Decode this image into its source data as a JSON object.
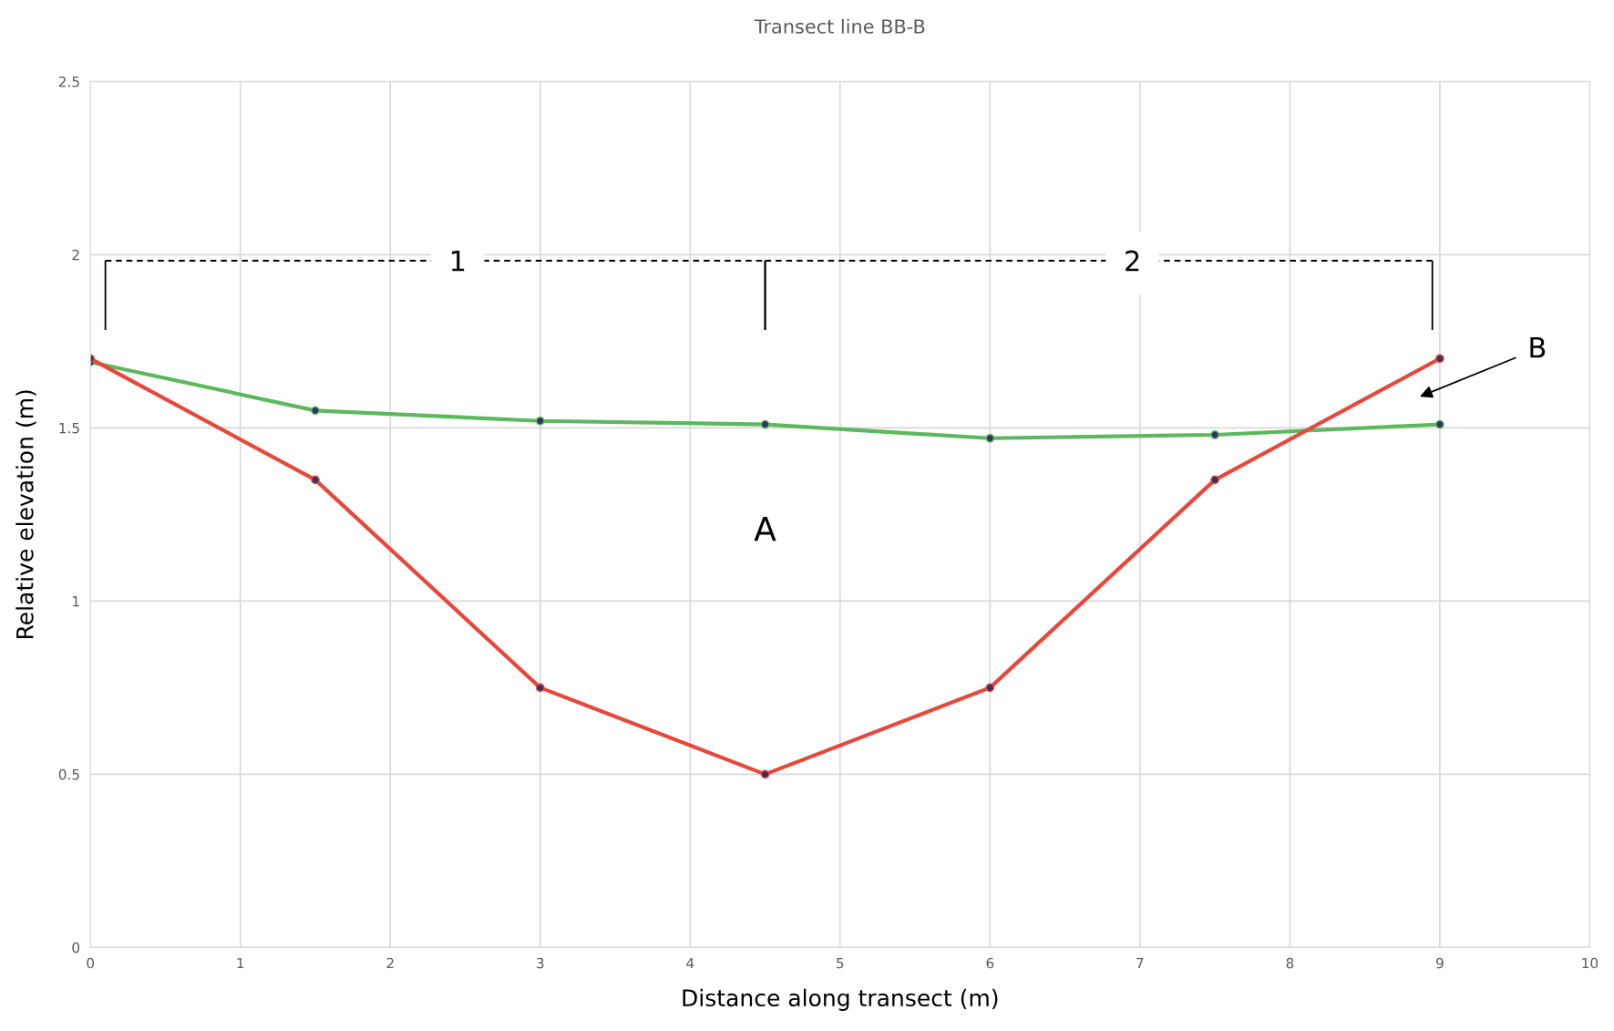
{
  "chart_data": {
    "type": "line",
    "title": "Transect line BB-B",
    "xlabel": "Distance along transect (m)",
    "ylabel": "Relative elevation (m)",
    "x": [
      0,
      1.5,
      3,
      4.5,
      6,
      7.5,
      9
    ],
    "series": [
      {
        "color": "#5cb85c",
        "values": [
          1.69,
          1.55,
          1.52,
          1.51,
          1.47,
          1.48,
          1.51
        ]
      },
      {
        "color": "#e8473b",
        "values": [
          1.7,
          1.35,
          0.75,
          0.5,
          0.75,
          1.35,
          1.7
        ]
      }
    ],
    "xlim": [
      0,
      10
    ],
    "xticks": [
      0,
      1,
      2,
      3,
      4,
      5,
      6,
      7,
      8,
      9,
      10
    ],
    "ylim": [
      0,
      2.5
    ],
    "yticks": [
      0,
      0.5,
      1,
      1.5,
      2,
      2.5
    ],
    "grid": true,
    "marker": "circle",
    "line_style": "solid",
    "annotations": [
      "1",
      "2",
      "A",
      "B"
    ]
  }
}
